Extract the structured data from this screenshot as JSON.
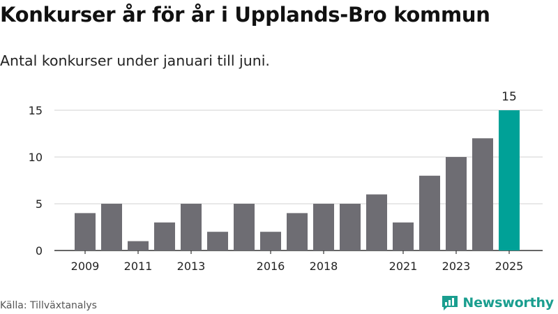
{
  "title": "Konkurser år för år i Upplands-Bro kommun",
  "subtitle": "Antal konkurser under januari till juni.",
  "source": "Källa: Tillväxtanalys",
  "brand": "Newsworthy",
  "colors": {
    "bar": "#6e6d73",
    "highlight": "#00a197",
    "grid": "#d9d9d9",
    "brand": "#1a9e8f"
  },
  "chart_data": {
    "type": "bar",
    "title": "",
    "xlabel": "",
    "ylabel": "",
    "categories": [
      "2009",
      "2010",
      "2011",
      "2012",
      "2013",
      "2014",
      "2015",
      "2016",
      "2017",
      "2018",
      "2019",
      "2020",
      "2021",
      "2022",
      "2023",
      "2024",
      "2025"
    ],
    "values": [
      4,
      5,
      1,
      3,
      5,
      2,
      5,
      2,
      4,
      5,
      5,
      6,
      3,
      8,
      10,
      12,
      15
    ],
    "xtick_labels": [
      "2009",
      "2011",
      "2013",
      "2016",
      "2018",
      "2021",
      "2023",
      "2025"
    ],
    "yticks": [
      0,
      5,
      10,
      15
    ],
    "ylim": [
      0,
      15
    ],
    "highlight_category": "2025",
    "data_labels": [
      {
        "category": "2025",
        "text": "15"
      }
    ],
    "grid": true,
    "legend": "none"
  }
}
